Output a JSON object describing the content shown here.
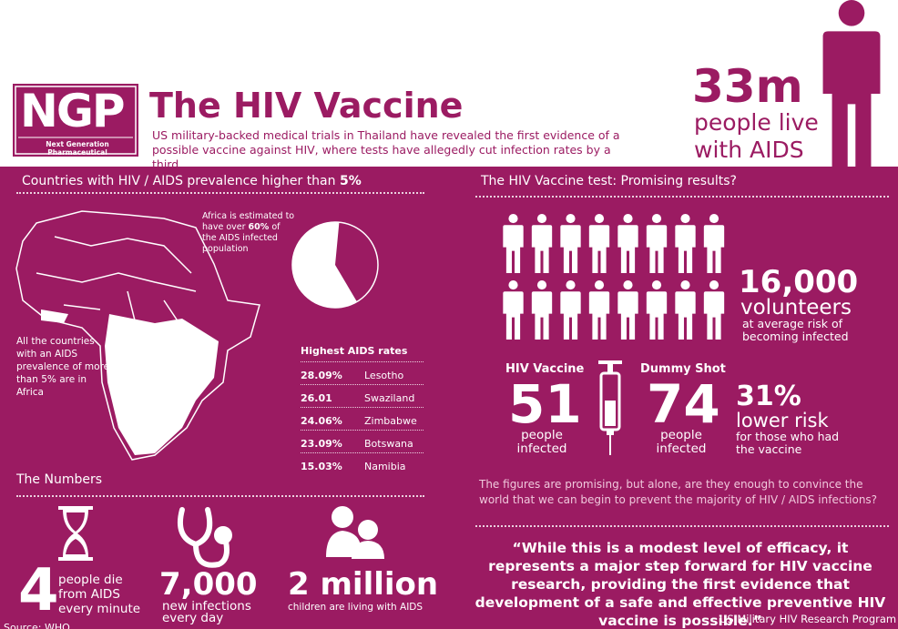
{
  "header": {
    "logo": "NGP",
    "logo_tagline": "Next Generation Pharmaceutical",
    "title": "The HIV Vaccine",
    "subtitle": "US military-backed medical trials in Thailand have revealed the first evidence of a possible vaccine against HIV, where tests have allegedly cut infection rates by a third."
  },
  "headline_stat": {
    "value": "33m",
    "line1": "people live",
    "line2": "with AIDS"
  },
  "prevalence": {
    "heading": "Countries with HIV / AIDS prevalence higher than ",
    "heading_bold": "5%",
    "map_note": "All the countries with an AIDS prevalence of more than 5% are in Africa",
    "pie_note_before": "Africa is estimated to have over ",
    "pie_note_bold": "60%",
    "pie_note_after": " of the AIDS infected population",
    "pie_share": 60,
    "table": {
      "title": "Highest AIDS rates",
      "rows": [
        [
          "28.09%",
          "Lesotho"
        ],
        [
          "26.01",
          "Swaziland"
        ],
        [
          "24.06%",
          "Zimbabwe"
        ],
        [
          "23.09%",
          "Botswana"
        ],
        [
          "15.03%",
          "Namibia"
        ]
      ]
    }
  },
  "numbers": {
    "heading": "The Numbers",
    "items": [
      {
        "value": "4",
        "label": "people die from AIDS every minute"
      },
      {
        "value": "7,000",
        "label": "new infections every day"
      },
      {
        "value": "2 million",
        "label": "children are living with AIDS"
      }
    ],
    "source": "Source: WHO"
  },
  "trial": {
    "heading": "The HIV Vaccine test: Promising results?",
    "volunteers": {
      "value": "16,000",
      "label": "volunteers",
      "note": "at average risk of becoming infected"
    },
    "vaccine": {
      "title": "HIV Vaccine",
      "value": "51",
      "label": "people infected"
    },
    "dummy": {
      "title": "Dummy Shot",
      "value": "74",
      "label": "people infected"
    },
    "reduction": {
      "value": "31%",
      "label": "lower risk",
      "note": "for those who had the vaccine"
    },
    "paragraph": "The figures are promising, but alone,  are they enough to convince  the world that we can begin to prevent the majority of HIV / AIDS infections?",
    "quote": "“While this is a modest level of efficacy, it represents a major step forward for HIV vaccine research, providing the first evidence that development of a safe and effective preventive HIV vaccine is possible.”",
    "attribution": "US Military HIV Research Program"
  }
}
